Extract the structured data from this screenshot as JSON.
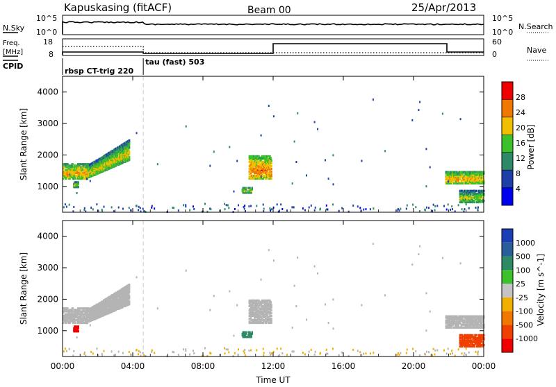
{
  "header": {
    "station": "Kapuskasing (fitACF)",
    "beam": "Beam 00",
    "date": "25/Apr/2013"
  },
  "summary_panels": {
    "nsky": {
      "label": "N.Sky",
      "left_ticks": [
        "10^5",
        "10^0"
      ],
      "right_ticks": [
        "10^5",
        "10^0"
      ],
      "right_label": "N.Search"
    },
    "freq": {
      "label_line1": "Freq.",
      "label_line2": "[MHz]",
      "left_ticks": [
        "18",
        "8"
      ],
      "right_ticks": [
        "60",
        "0"
      ],
      "right_label": "Nave"
    },
    "cpid": {
      "label": "CPID",
      "entries": [
        {
          "text": "rbsp CT-trig 220",
          "start_hour": 0.0
        },
        {
          "text": "tau (fast) 503",
          "start_hour": 4.6
        }
      ]
    }
  },
  "x_axis": {
    "title": "Time UT",
    "ticks": [
      "00:00",
      "04:00",
      "08:00",
      "12:00",
      "16:00",
      "20:00",
      "00:00"
    ],
    "tick_hours": [
      0,
      4,
      8,
      12,
      16,
      20,
      24
    ],
    "range_hours": [
      0,
      24
    ],
    "mode_change_hour": 4.6
  },
  "power_panel": {
    "ylabel": "Slant Range [km]",
    "yticks": [
      "1000",
      "2000",
      "3000",
      "4000"
    ],
    "ytick_values": [
      1000,
      2000,
      3000,
      4000
    ],
    "yrange_km": [
      180,
      4500
    ],
    "colorbar_label": "Power [dB]",
    "colorbar_ticks": [
      "4",
      "8",
      "12",
      "16",
      "20",
      "24",
      "28"
    ],
    "colors": [
      "#0000f0",
      "#1f3fa8",
      "#2e8a66",
      "#3cc12b",
      "#f0c000",
      "#f07800",
      "#f00000"
    ]
  },
  "velocity_panel": {
    "ylabel": "Slant Range [km]",
    "yticks": [
      "1000",
      "2000",
      "3000",
      "4000"
    ],
    "ytick_values": [
      1000,
      2000,
      3000,
      4000
    ],
    "yrange_km": [
      180,
      4500
    ],
    "colorbar_label": "Velocity [m s^-1]",
    "colorbar_ticks": [
      "1000",
      "500",
      "100",
      "25",
      "-25",
      "-100",
      "-500",
      "-1000"
    ],
    "colors": [
      "#1a3fb5",
      "#2a5e9a",
      "#2e8a66",
      "#3cc12b",
      "#c4c4c4",
      "#f0b000",
      "#f07800",
      "#f04000",
      "#f00000"
    ],
    "ground_scatter_color": "#b4b4b4"
  },
  "chart_data": {
    "type": "heatmap",
    "scatter_regions": [
      {
        "name": "evening_band",
        "t0": 0.0,
        "t1": 1.5,
        "r0": 1250,
        "r1": 1750,
        "power": 10,
        "velocity": 0
      },
      {
        "name": "rising_band",
        "t0": 1.5,
        "t1": 3.8,
        "r0": 1300,
        "r1": 2500,
        "power": 8,
        "velocity": 0
      },
      {
        "name": "red_echo",
        "t0": 0.6,
        "t1": 0.9,
        "r0": 980,
        "r1": 1180,
        "power": 6,
        "velocity": -1000
      },
      {
        "name": "midday_band",
        "t0": 10.6,
        "t1": 11.9,
        "r0": 1250,
        "r1": 2000,
        "power": 12,
        "velocity": 0
      },
      {
        "name": "midday_tail",
        "t0": 10.2,
        "t1": 10.8,
        "r0": 800,
        "r1": 1000,
        "power": 6,
        "velocity": 300
      },
      {
        "name": "morning_band",
        "t0": 21.8,
        "t1": 24.0,
        "r0": 1100,
        "r1": 1500,
        "power": 10,
        "velocity": 0
      },
      {
        "name": "morning_low",
        "t0": 22.6,
        "t1": 24.0,
        "r0": 500,
        "r1": 900,
        "power": 6,
        "velocity": -500
      }
    ]
  }
}
